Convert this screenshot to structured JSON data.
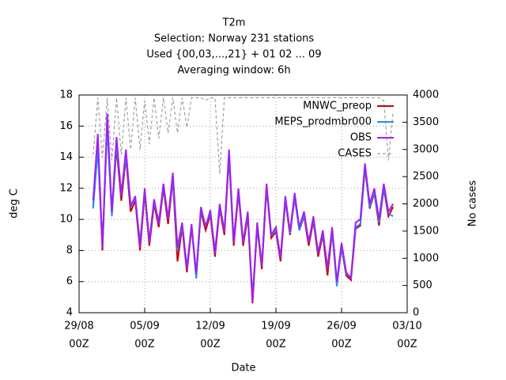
{
  "chart_data": {
    "type": "line",
    "title": [
      "T2m",
      "Selection: Norway    231 stations",
      "Used {00,03,...,21} + 01 02 ... 09",
      "Averaging window:  6h"
    ],
    "xlabel": "Date",
    "ylabel": "deg C",
    "y2label": "No cases",
    "xlim": [
      0,
      35
    ],
    "ylim": [
      4,
      18
    ],
    "y2lim": [
      0,
      4000
    ],
    "xticks": [
      {
        "value": 0,
        "label": "29/08",
        "sublabel": "00Z"
      },
      {
        "value": 7,
        "label": "05/09",
        "sublabel": "00Z"
      },
      {
        "value": 14,
        "label": "12/09",
        "sublabel": "00Z"
      },
      {
        "value": 21,
        "label": "19/09",
        "sublabel": "00Z"
      },
      {
        "value": 28,
        "label": "26/09",
        "sublabel": "00Z"
      },
      {
        "value": 35,
        "label": "03/10",
        "sublabel": "00Z"
      }
    ],
    "yticks": [
      4,
      6,
      8,
      10,
      12,
      14,
      16,
      18
    ],
    "y2ticks": [
      0,
      500,
      1000,
      1500,
      2000,
      2500,
      3000,
      3500,
      4000
    ],
    "grid": true,
    "legend": "upper right",
    "x": [
      1.5,
      2,
      2.5,
      3,
      3.5,
      4,
      4.5,
      5,
      5.5,
      6,
      6.5,
      7,
      7.5,
      8,
      8.5,
      9,
      9.5,
      10,
      10.5,
      11,
      11.5,
      12,
      12.5,
      13,
      13.5,
      14,
      14.5,
      15,
      15.5,
      16,
      16.5,
      17,
      17.5,
      18,
      18.5,
      19,
      19.5,
      20,
      20.5,
      21,
      21.5,
      22,
      22.5,
      23,
      23.5,
      24,
      24.5,
      25,
      25.5,
      26,
      26.5,
      27,
      27.5,
      28,
      28.5,
      29,
      29.5,
      30,
      30.5,
      31,
      31.5,
      32,
      32.5,
      33,
      33.5
    ],
    "series": [
      {
        "name": "MNWC_preop",
        "color": "#cc0000",
        "dash": false,
        "values": [
          10.8,
          14.8,
          8.0,
          16.2,
          10.3,
          14.6,
          11.2,
          14.0,
          10.5,
          11.2,
          8.0,
          11.7,
          8.3,
          11.0,
          9.5,
          12.0,
          9.7,
          12.6,
          7.3,
          9.5,
          6.6,
          9.5,
          6.3,
          10.5,
          9.3,
          10.3,
          7.6,
          10.7,
          9.0,
          14.0,
          8.3,
          11.7,
          8.3,
          10.2,
          4.6,
          9.5,
          6.8,
          12.0,
          8.8,
          9.2,
          7.3,
          11.2,
          9.0,
          11.4,
          9.3,
          10.2,
          8.3,
          9.9,
          7.6,
          9.0,
          6.4,
          9.2,
          5.8,
          8.2,
          6.4,
          6.1,
          9.4,
          9.6,
          13.3,
          10.7,
          11.7,
          9.6,
          12.0,
          10.2,
          10.8
        ],
        "axis": "y"
      },
      {
        "name": "MEPS_prodmbr000",
        "color": "#1e90ff",
        "dash": false,
        "values": [
          10.7,
          14.5,
          8.3,
          16.0,
          10.2,
          14.8,
          11.7,
          14.1,
          11.0,
          11.3,
          8.5,
          11.8,
          8.7,
          11.1,
          9.9,
          12.1,
          10.1,
          12.7,
          8.0,
          9.6,
          6.9,
          9.6,
          6.2,
          10.6,
          9.6,
          10.4,
          8.0,
          10.8,
          9.3,
          14.1,
          8.7,
          11.8,
          8.6,
          10.3,
          5.0,
          9.6,
          7.1,
          12.1,
          9.0,
          9.3,
          7.6,
          11.3,
          9.1,
          11.5,
          9.3,
          10.3,
          8.6,
          10.0,
          7.9,
          9.1,
          6.9,
          9.3,
          5.7,
          8.3,
          6.5,
          6.3,
          9.5,
          9.7,
          13.4,
          10.8,
          11.8,
          9.8,
          12.1,
          10.4,
          10.2
        ],
        "axis": "y"
      },
      {
        "name": "OBS",
        "color": "#a020f0",
        "dash": false,
        "values": [
          11.2,
          15.5,
          8.2,
          16.8,
          10.5,
          15.3,
          11.5,
          14.5,
          10.8,
          11.5,
          8.2,
          12.0,
          8.5,
          11.3,
          9.7,
          12.3,
          10.0,
          13.0,
          8.2,
          9.8,
          6.8,
          9.7,
          6.5,
          10.8,
          9.5,
          10.6,
          7.8,
          11.0,
          9.2,
          14.5,
          8.5,
          12.0,
          8.5,
          10.5,
          4.7,
          9.8,
          7.0,
          12.3,
          9.0,
          9.5,
          7.5,
          11.5,
          9.2,
          11.7,
          9.5,
          10.5,
          8.5,
          10.2,
          7.8,
          9.3,
          6.8,
          9.5,
          6.0,
          8.5,
          6.6,
          6.2,
          9.8,
          10.0,
          13.6,
          11.0,
          12.0,
          10.0,
          12.3,
          10.5,
          11.0
        ],
        "axis": "y"
      },
      {
        "name": "CASES",
        "color": "#a0a0a0",
        "dash": true,
        "values": [
          2900,
          3950,
          2850,
          3950,
          2800,
          3950,
          2900,
          3950,
          3000,
          3950,
          3000,
          3900,
          3100,
          3950,
          3200,
          3950,
          3300,
          3950,
          3300,
          3950,
          3400,
          3950,
          3950,
          3950,
          3900,
          3950,
          3950,
          2550,
          3950,
          3950,
          3950,
          3950,
          3950,
          3950,
          3950,
          3950,
          3950,
          3950,
          3950,
          3950,
          3950,
          3950,
          3950,
          3950,
          3950,
          3950,
          3950,
          3950,
          3950,
          3950,
          3950,
          3950,
          3950,
          3950,
          3950,
          3950,
          3950,
          3950,
          3950,
          3950,
          3950,
          3950,
          3900,
          2800,
          3700
        ],
        "axis": "y2"
      }
    ]
  }
}
